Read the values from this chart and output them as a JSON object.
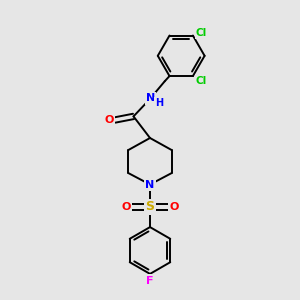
{
  "bg_color": "#e6e6e6",
  "bond_color": "#000000",
  "atom_colors": {
    "N": "#0000ff",
    "O": "#ff0000",
    "S": "#ccaa00",
    "F": "#ff00ff",
    "Cl": "#00cc00",
    "C": "#000000"
  },
  "figsize": [
    3.0,
    3.0
  ],
  "dpi": 100,
  "xlim": [
    0,
    10
  ],
  "ylim": [
    0,
    10
  ]
}
